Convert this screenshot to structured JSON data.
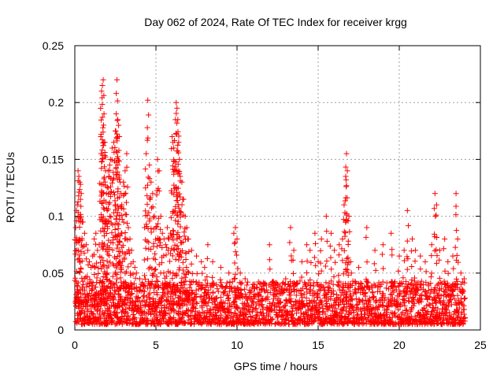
{
  "chart_data": {
    "type": "scatter",
    "title": "Day 062 of 2024, Rate Of TEC Index for receiver krgg",
    "xlabel": "GPS time / hours",
    "ylabel": "ROTI / TECUs",
    "xlim": [
      0,
      25
    ],
    "ylim": [
      0,
      0.25
    ],
    "x_ticks": [
      "0",
      "5",
      "10",
      "15",
      "20",
      "25"
    ],
    "y_ticks": [
      "0",
      "0.05",
      "0.1",
      "0.15",
      "0.2",
      "0.25"
    ],
    "grid": true,
    "marker": "plus",
    "series_color": "#ff0000",
    "baseline_sampling": {
      "x_start": 0.05,
      "x_end": 24.05,
      "step_hours": 0.04,
      "note_values": "dense cluster of ROTI values mostly between 0.005 and 0.04 across the full day"
    },
    "points": [
      [
        0.05,
        0.09
      ],
      [
        0.1,
        0.105
      ],
      [
        0.15,
        0.11
      ],
      [
        0.2,
        0.14
      ],
      [
        0.25,
        0.135
      ],
      [
        0.3,
        0.13
      ],
      [
        0.35,
        0.128
      ],
      [
        0.4,
        0.12
      ],
      [
        0.5,
        0.095
      ],
      [
        0.6,
        0.085
      ],
      [
        0.7,
        0.075
      ],
      [
        0.8,
        0.07
      ],
      [
        0.9,
        0.06
      ],
      [
        1.0,
        0.055
      ],
      [
        1.1,
        0.065
      ],
      [
        1.2,
        0.08
      ],
      [
        1.3,
        0.085
      ],
      [
        1.4,
        0.07
      ],
      [
        1.5,
        0.075
      ],
      [
        1.6,
        0.17
      ],
      [
        1.65,
        0.21
      ],
      [
        1.7,
        0.215
      ],
      [
        1.75,
        0.22
      ],
      [
        1.8,
        0.19
      ],
      [
        1.85,
        0.165
      ],
      [
        1.9,
        0.14
      ],
      [
        1.95,
        0.12
      ],
      [
        2.0,
        0.105
      ],
      [
        2.05,
        0.14
      ],
      [
        2.1,
        0.135
      ],
      [
        2.15,
        0.145
      ],
      [
        2.2,
        0.15
      ],
      [
        2.3,
        0.16
      ],
      [
        2.4,
        0.165
      ],
      [
        2.5,
        0.175
      ],
      [
        2.55,
        0.19
      ],
      [
        2.6,
        0.22
      ],
      [
        2.65,
        0.185
      ],
      [
        2.7,
        0.18
      ],
      [
        2.75,
        0.17
      ],
      [
        2.8,
        0.13
      ],
      [
        2.85,
        0.12
      ],
      [
        2.9,
        0.11
      ],
      [
        3.0,
        0.13
      ],
      [
        3.1,
        0.14
      ],
      [
        3.2,
        0.155
      ],
      [
        3.3,
        0.09
      ],
      [
        3.4,
        0.08
      ],
      [
        3.5,
        0.07
      ],
      [
        3.6,
        0.06
      ],
      [
        3.7,
        0.055
      ],
      [
        3.8,
        0.05
      ],
      [
        4.0,
        0.045
      ],
      [
        4.2,
        0.04
      ],
      [
        4.3,
        0.09
      ],
      [
        4.4,
        0.155
      ],
      [
        4.5,
        0.202
      ],
      [
        4.6,
        0.145
      ],
      [
        4.7,
        0.13
      ],
      [
        4.8,
        0.12
      ],
      [
        4.9,
        0.1
      ],
      [
        5.0,
        0.09
      ],
      [
        5.1,
        0.15
      ],
      [
        5.2,
        0.14
      ],
      [
        5.3,
        0.1
      ],
      [
        5.4,
        0.085
      ],
      [
        5.5,
        0.08
      ],
      [
        5.6,
        0.075
      ],
      [
        5.7,
        0.09
      ],
      [
        5.8,
        0.08
      ],
      [
        5.9,
        0.085
      ],
      [
        6.0,
        0.17
      ],
      [
        6.05,
        0.165
      ],
      [
        6.1,
        0.16
      ],
      [
        6.2,
        0.185
      ],
      [
        6.25,
        0.2
      ],
      [
        6.3,
        0.195
      ],
      [
        6.35,
        0.185
      ],
      [
        6.4,
        0.165
      ],
      [
        6.45,
        0.15
      ],
      [
        6.5,
        0.135
      ],
      [
        6.6,
        0.13
      ],
      [
        6.7,
        0.115
      ],
      [
        6.8,
        0.1
      ],
      [
        6.9,
        0.09
      ],
      [
        7.0,
        0.08
      ],
      [
        7.2,
        0.07
      ],
      [
        7.5,
        0.065
      ],
      [
        7.8,
        0.06
      ],
      [
        8.0,
        0.055
      ],
      [
        8.2,
        0.075
      ],
      [
        8.5,
        0.06
      ],
      [
        9.0,
        0.055
      ],
      [
        9.5,
        0.05
      ],
      [
        9.8,
        0.085
      ],
      [
        9.9,
        0.09
      ],
      [
        10.0,
        0.08
      ],
      [
        10.2,
        0.05
      ],
      [
        10.5,
        0.045
      ],
      [
        11.0,
        0.04
      ],
      [
        11.5,
        0.035
      ],
      [
        12.0,
        0.075
      ],
      [
        12.5,
        0.04
      ],
      [
        13.0,
        0.045
      ],
      [
        13.3,
        0.09
      ],
      [
        13.5,
        0.07
      ],
      [
        14.0,
        0.06
      ],
      [
        14.3,
        0.075
      ],
      [
        14.5,
        0.07
      ],
      [
        14.8,
        0.085
      ],
      [
        15.0,
        0.06
      ],
      [
        15.2,
        0.08
      ],
      [
        15.5,
        0.1
      ],
      [
        15.8,
        0.085
      ],
      [
        16.0,
        0.07
      ],
      [
        16.3,
        0.075
      ],
      [
        16.5,
        0.08
      ],
      [
        16.6,
        0.11
      ],
      [
        16.7,
        0.135
      ],
      [
        16.75,
        0.155
      ],
      [
        16.8,
        0.14
      ],
      [
        16.9,
        0.1
      ],
      [
        17.0,
        0.06
      ],
      [
        17.5,
        0.055
      ],
      [
        18.0,
        0.09
      ],
      [
        18.5,
        0.07
      ],
      [
        19.0,
        0.075
      ],
      [
        19.5,
        0.085
      ],
      [
        20.0,
        0.065
      ],
      [
        20.3,
        0.07
      ],
      [
        20.5,
        0.105
      ],
      [
        20.8,
        0.08
      ],
      [
        21.0,
        0.07
      ],
      [
        21.3,
        0.065
      ],
      [
        21.6,
        0.06
      ],
      [
        22.0,
        0.075
      ],
      [
        22.2,
        0.12
      ],
      [
        22.3,
        0.11
      ],
      [
        22.5,
        0.07
      ],
      [
        22.8,
        0.08
      ],
      [
        23.0,
        0.06
      ],
      [
        23.3,
        0.065
      ],
      [
        23.5,
        0.12
      ],
      [
        23.6,
        0.08
      ],
      [
        23.8,
        0.05
      ],
      [
        24.0,
        0.045
      ]
    ]
  }
}
